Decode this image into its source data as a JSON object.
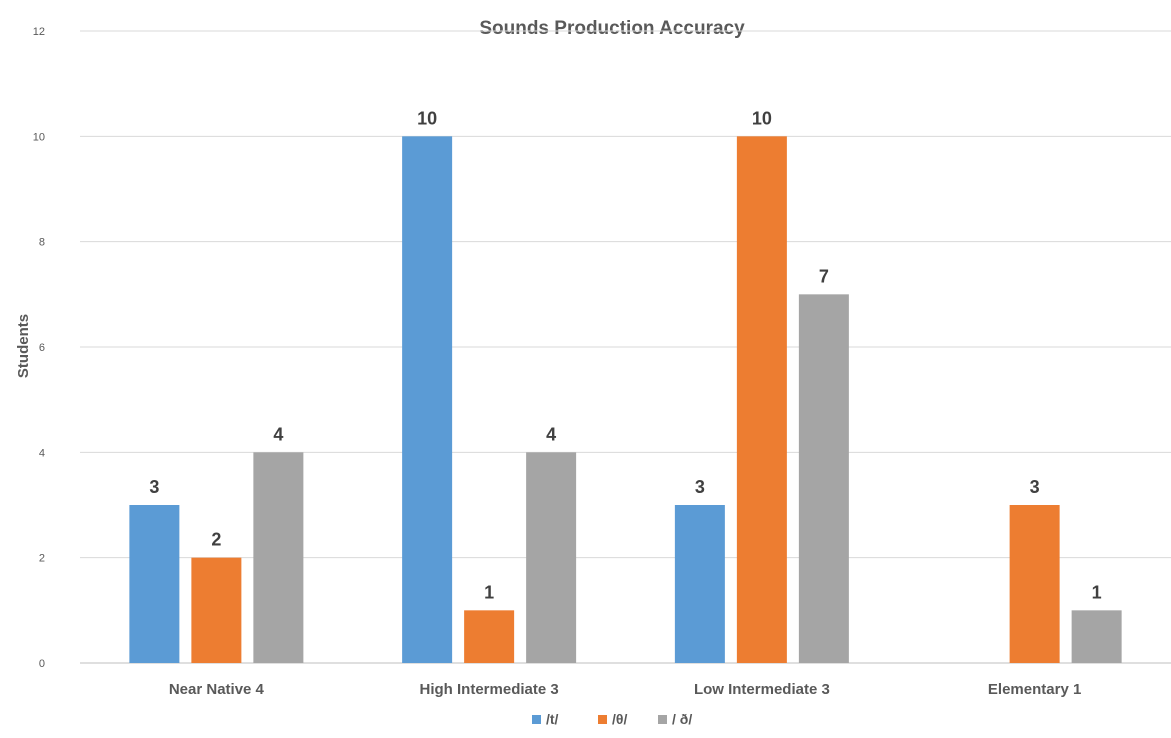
{
  "chart_data": {
    "type": "bar",
    "title": "Sounds Production Accuracy",
    "xlabel": "",
    "ylabel": "Students",
    "ylim": [
      0,
      12
    ],
    "yticks": [
      0,
      2,
      4,
      6,
      8,
      10,
      12
    ],
    "grid": true,
    "legend_position": "bottom",
    "categories": [
      "Near Native 4",
      "High Intermediate 3",
      "Low Intermediate 3",
      "Elementary 1"
    ],
    "series": [
      {
        "name": "/t/",
        "color": "#5b9bd5",
        "values": [
          3,
          10,
          3,
          null
        ]
      },
      {
        "name": "/θ/",
        "color": "#ed7d31",
        "values": [
          2,
          1,
          10,
          3
        ]
      },
      {
        "name": "/ ð/",
        "color": "#a5a5a5",
        "values": [
          4,
          4,
          7,
          1
        ]
      }
    ]
  }
}
